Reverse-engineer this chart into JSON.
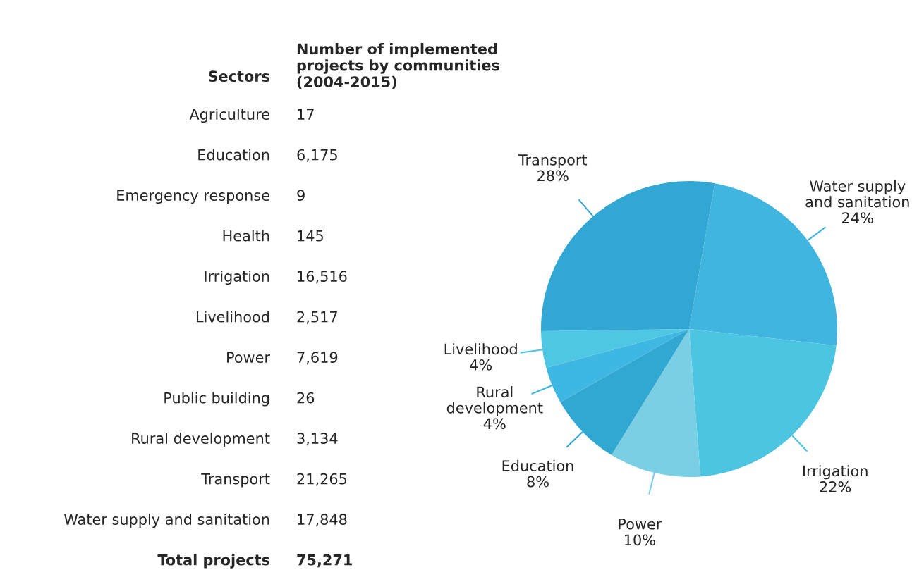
{
  "chart_data": [
    {
      "type": "other",
      "title": "Number of implemented\nprojects by communities\n(2004-2015)",
      "ylabel": "Sectors",
      "categories": [
        "Agriculture",
        "Education",
        "Emergency response",
        "Health",
        "Irrigation",
        "Livelihood",
        "Power",
        "Public building",
        "Rural development",
        "Transport",
        "Water supply and sanitation",
        "Total projects"
      ],
      "value_labels": [
        "17",
        "6,175",
        "9",
        "145",
        "16,516",
        "2,517",
        "7,619",
        "26",
        "3,134",
        "21,265",
        "17,848",
        "75,271"
      ]
    },
    {
      "type": "pie",
      "categories": [
        "Water supply\nand sanitation",
        "Irrigation",
        "Power",
        "Education",
        "Rural\ndevelopment",
        "Livelihood",
        "Transport"
      ],
      "values": [
        24,
        22,
        10,
        8,
        4,
        4,
        28
      ],
      "value_labels": [
        "24%",
        "22%",
        "10%",
        "8%",
        "4%",
        "4%",
        "28%"
      ],
      "colors": [
        "#40b5e0",
        "#4cc5e2",
        "#7bcfe4",
        "#30a8d2",
        "#3eb7e2",
        "#4dc7e3",
        "#33a7d4"
      ],
      "legend": false
    }
  ]
}
